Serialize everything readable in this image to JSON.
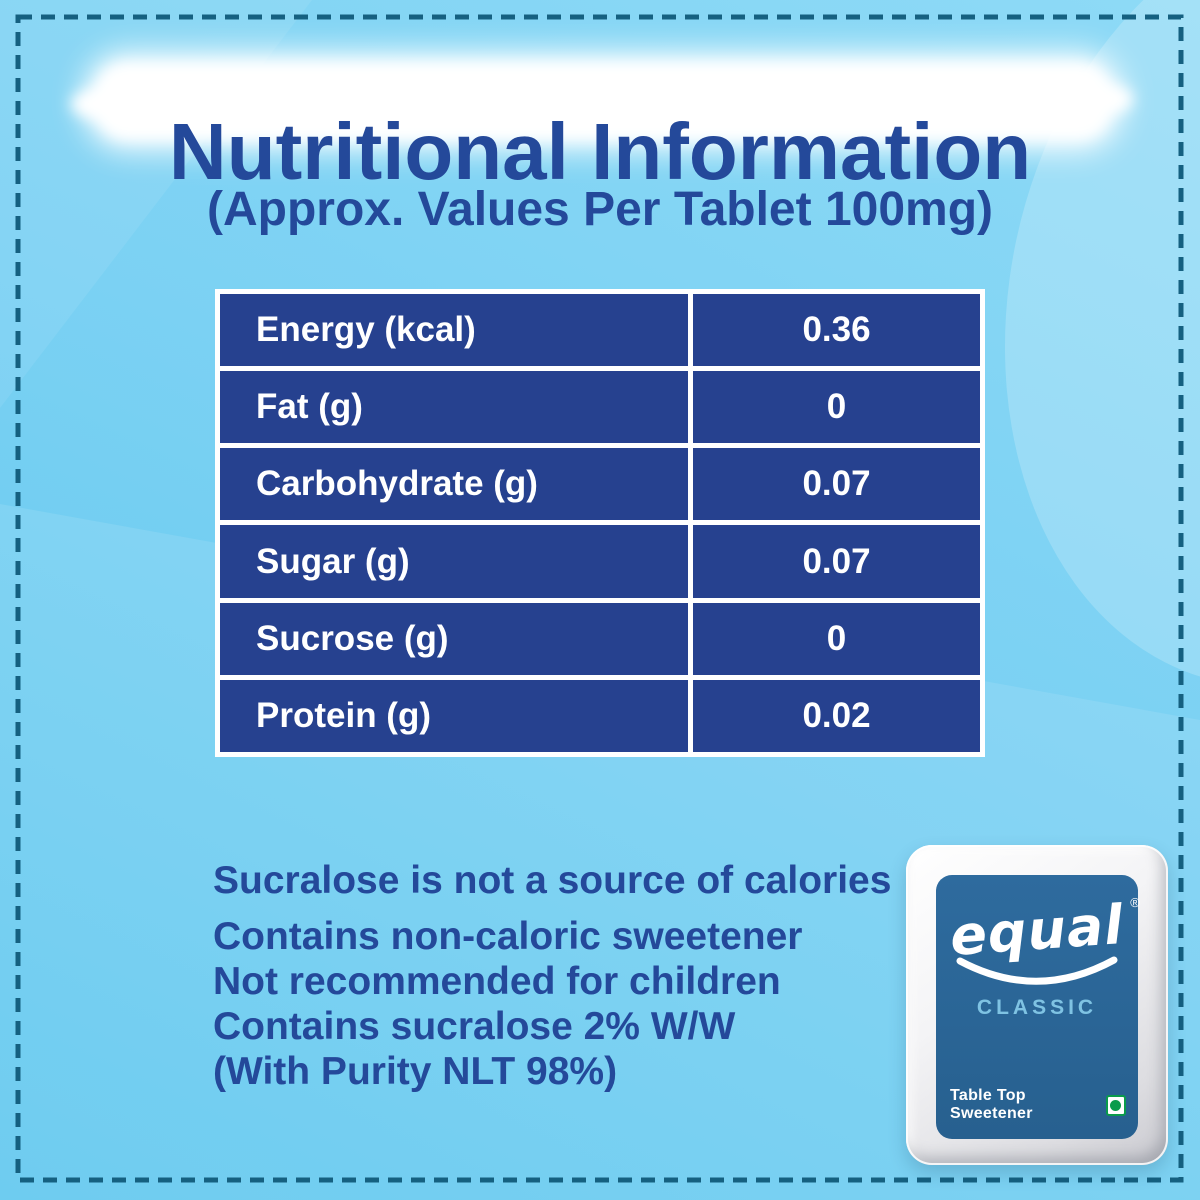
{
  "header": {
    "title": "Nutritional Information",
    "subtitle": "(Approx. Values Per Tablet 100mg)"
  },
  "table": {
    "rows": [
      {
        "label": "Energy (kcal)",
        "value": "0.36"
      },
      {
        "label": "Fat (g)",
        "value": "0"
      },
      {
        "label": "Carbohydrate (g)",
        "value": "0.07"
      },
      {
        "label": "Sugar (g)",
        "value": "0.07"
      },
      {
        "label": "Sucrose (g)",
        "value": "0"
      },
      {
        "label": "Protein (g)",
        "value": "0.02"
      }
    ]
  },
  "notes": {
    "calorie_note": "Sucralose is not a source of calories",
    "lines": [
      "Contains non-caloric sweetener",
      "Not recommended for children",
      "Contains sucralose 2% W/W",
      "(With Purity NLT 98%)"
    ]
  },
  "product": {
    "brand": "equal",
    "registered_mark": "®",
    "variant": "CLASSIC",
    "descriptor": "Table Top Sweetener"
  },
  "icons": {
    "veg_mark": "veg-symbol-green-dot-in-square",
    "smile": "smile-underline-curve"
  },
  "colors": {
    "background_blue": "#7bd1f3",
    "navy_text": "#24499a",
    "table_cell_navy": "#26418f",
    "dashed_border": "#156080",
    "packet_label_blue": "#2b6596",
    "classic_light_blue": "#7fc3e3",
    "veg_green": "#0a9b4b",
    "white": "#ffffff"
  }
}
